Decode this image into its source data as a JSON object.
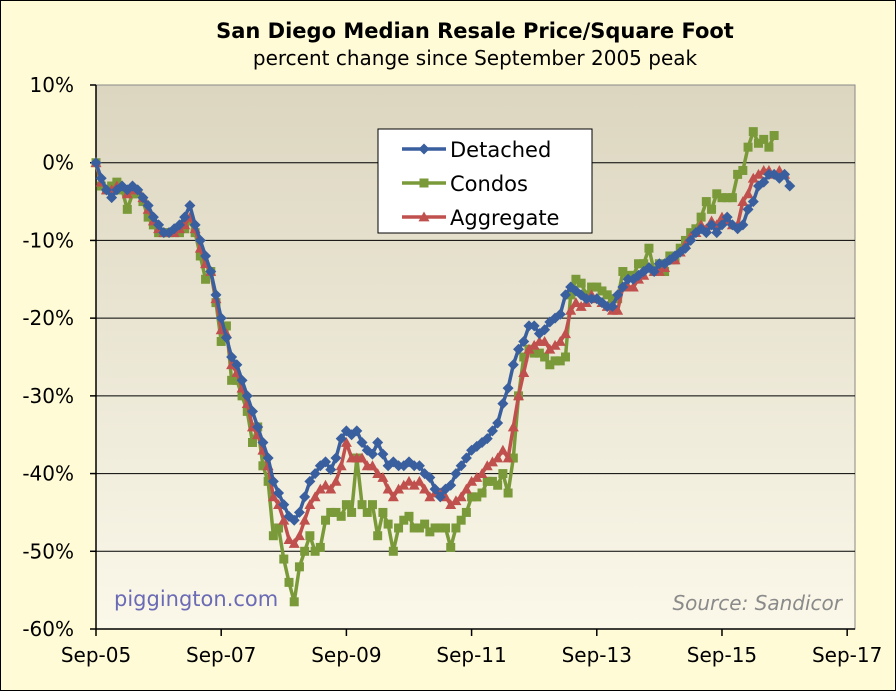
{
  "chart_data": {
    "type": "line",
    "title": "San Diego Median Resale Price/Square Foot",
    "subtitle": "percent change since September 2005 peak",
    "xlabel": "",
    "ylabel": "",
    "ylim": [
      -60,
      10
    ],
    "y_ticks": [
      "10%",
      "0%",
      "-10%",
      "-20%",
      "-30%",
      "-40%",
      "-50%",
      "-60%"
    ],
    "x_ticks": [
      "Sep-05",
      "Sep-07",
      "Sep-09",
      "Sep-11",
      "Sep-13",
      "Sep-15",
      "Sep-17"
    ],
    "x_start": "Sep-05",
    "grid": true,
    "legend_position": "top-center",
    "annotations": {
      "watermark": "piggington.com",
      "source": "Source: Sandicor"
    },
    "colors": {
      "Detached": "#3a5f9e",
      "Condos": "#7a9a3a",
      "Aggregate": "#c0504d"
    },
    "series": [
      {
        "name": "Detached",
        "marker": "diamond",
        "values": [
          0,
          -2,
          -3.5,
          -4.5,
          -3.5,
          -3,
          -3.5,
          -3,
          -3.5,
          -4.5,
          -5.5,
          -7,
          -8,
          -9,
          -9,
          -8.5,
          -8,
          -7,
          -5.5,
          -8,
          -10,
          -12,
          -14,
          -17,
          -20,
          -22.5,
          -25,
          -26,
          -28,
          -30,
          -32,
          -34,
          -36,
          -38,
          -41,
          -42.5,
          -44,
          -45.5,
          -46,
          -45,
          -43,
          -41,
          -40,
          -39,
          -38.5,
          -39.5,
          -38,
          -35.5,
          -34.5,
          -35,
          -34.5,
          -36,
          -37,
          -37.5,
          -36,
          -37.5,
          -39,
          -38.5,
          -39,
          -39,
          -38.5,
          -39,
          -39,
          -40,
          -40.5,
          -42,
          -43,
          -42,
          -41.5,
          -40,
          -39,
          -38,
          -37,
          -36.5,
          -36,
          -35.5,
          -34.5,
          -33.5,
          -31,
          -29,
          -26,
          -24,
          -23,
          -21,
          -21,
          -22,
          -21.5,
          -20.5,
          -20,
          -19.5,
          -17,
          -16,
          -16.5,
          -17,
          -17.5,
          -17.5,
          -17.5,
          -18,
          -18.5,
          -18.5,
          -17,
          -16,
          -15,
          -15,
          -14.5,
          -14,
          -13.5,
          -14,
          -13,
          -13,
          -12.5,
          -12,
          -11.5,
          -11,
          -10,
          -9,
          -8.5,
          -9,
          -8,
          -9,
          -8,
          -7,
          -8,
          -8.5,
          -8,
          -6,
          -5,
          -3,
          -2.5,
          -1.5,
          -1.5,
          -2,
          -1.5,
          -3
        ]
      },
      {
        "name": "Condos",
        "marker": "square",
        "values": [
          0,
          -3,
          -3.5,
          -3,
          -2.5,
          -3.5,
          -6,
          -4,
          -4,
          -5,
          -7,
          -8,
          -9,
          -9,
          -9,
          -9,
          -9,
          -8.5,
          -7.5,
          -9,
          -12,
          -15,
          -14,
          -18,
          -23,
          -21,
          -28,
          -28,
          -30,
          -32,
          -36,
          -34,
          -39,
          -41,
          -48,
          -47,
          -51,
          -54,
          -56.5,
          -52,
          -50,
          -48,
          -50,
          -49.5,
          -46,
          -45,
          -45,
          -45.5,
          -44,
          -45,
          -38,
          -44,
          -45,
          -44,
          -48,
          -45,
          -46.5,
          -50,
          -47,
          -46,
          -45.5,
          -47,
          -47,
          -46.5,
          -47.5,
          -47,
          -47,
          -47,
          -49.5,
          -47,
          -46,
          -45,
          -43,
          -43,
          -42.5,
          -41,
          -41,
          -41.5,
          -40,
          -42.5,
          -38,
          -30,
          -25,
          -24,
          -24.5,
          -24.5,
          -25,
          -26,
          -25.5,
          -25.5,
          -25,
          -17,
          -15,
          -15.5,
          -17,
          -16,
          -16,
          -16.5,
          -17,
          -17.5,
          -17.5,
          -14,
          -14.5,
          -14.5,
          -13,
          -13,
          -11,
          -14,
          -13,
          -14,
          -12,
          -12.5,
          -11,
          -10,
          -9,
          -8.5,
          -7,
          -5,
          -6,
          -4,
          -4.5,
          -4.5,
          -4.5,
          -1.5,
          -1,
          2,
          4,
          2.5,
          3,
          2,
          3.5
        ]
      },
      {
        "name": "Aggregate",
        "marker": "triangle",
        "values": [
          0,
          -2.5,
          -3.5,
          -3.5,
          -3,
          -3,
          -4,
          -3.5,
          -3.5,
          -4.5,
          -6,
          -7.5,
          -8.5,
          -9,
          -9,
          -9,
          -8.5,
          -8,
          -7,
          -8.5,
          -11,
          -13,
          -14,
          -17.5,
          -21.5,
          -22,
          -26,
          -27,
          -29,
          -31,
          -34,
          -35,
          -37,
          -39,
          -43,
          -44,
          -46,
          -48.5,
          -49,
          -48,
          -46,
          -44,
          -43,
          -42,
          -41.5,
          -42,
          -41,
          -39,
          -36,
          -38,
          -38,
          -38,
          -39,
          -39,
          -40,
          -40.5,
          -42,
          -43,
          -42,
          -41.5,
          -41,
          -41.5,
          -41,
          -42,
          -43,
          -42.5,
          -42.5,
          -43,
          -44,
          -43.5,
          -43,
          -42,
          -41,
          -40.5,
          -40,
          -39,
          -38.5,
          -38,
          -37,
          -38,
          -34,
          -30,
          -27,
          -24,
          -23.5,
          -23,
          -23,
          -24,
          -23.5,
          -23,
          -22,
          -19,
          -18,
          -18.5,
          -18,
          -17,
          -17.5,
          -18,
          -18.5,
          -19,
          -19,
          -16,
          -16,
          -16,
          -15,
          -14.5,
          -13.5,
          -14,
          -14,
          -13.5,
          -12.5,
          -12.5,
          -11.5,
          -10.5,
          -9.5,
          -9,
          -8,
          -8.5,
          -7.5,
          -8,
          -7,
          -7.5,
          -8,
          -8,
          -5,
          -4,
          -2,
          -1.5,
          -1,
          -1,
          -1.5,
          -1,
          -1.5
        ]
      }
    ]
  }
}
